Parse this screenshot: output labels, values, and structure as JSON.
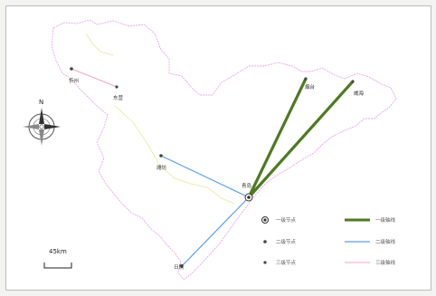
{
  "map": {
    "cities": [
      {
        "id": "xinzhou",
        "label": "忻州"
      },
      {
        "id": "dongying",
        "label": "东营"
      },
      {
        "id": "weifang",
        "label": "潍坊"
      },
      {
        "id": "yantai",
        "label": "烟台"
      },
      {
        "id": "weihai",
        "label": "威海"
      },
      {
        "id": "qingdao",
        "label": "青岛"
      },
      {
        "id": "rizhao",
        "label": "日照"
      }
    ],
    "legend": {
      "node_labels": [
        "一级节点",
        "二级节点",
        "三级节点"
      ],
      "axis_labels": [
        "一级轴线",
        "二级轴线",
        "三级轴线"
      ]
    },
    "compass": {
      "north_label": "N"
    },
    "scale_bar": {
      "label": "45km"
    },
    "colors": {
      "primary_axis": "#4d7a21",
      "secondary_axis": "#5a9ee6",
      "tertiary_axis": "#f2a6c9",
      "boundary": "#e6a5ea",
      "inner_boundary": "#e8e8a0"
    }
  }
}
